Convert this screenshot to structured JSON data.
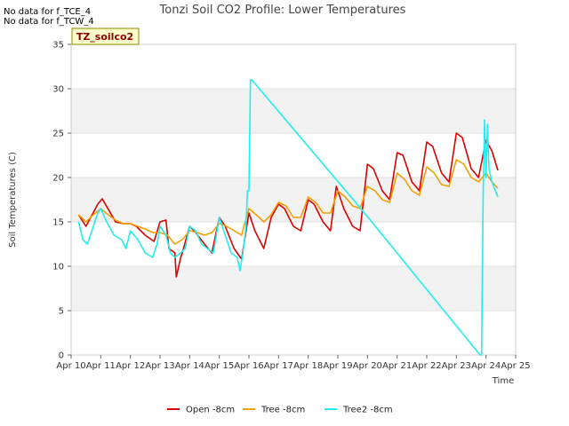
{
  "notes": [
    "No data for f_TCE_4",
    "No data for f_TCW_4"
  ],
  "badge": "TZ_soilco2",
  "chart_data": {
    "type": "line",
    "title": "Tonzi Soil CO2 Profile: Lower Temperatures",
    "xlabel": "Time",
    "ylabel": "Soil Temperatures (C)",
    "xlim": [
      10,
      25
    ],
    "ylim": [
      0,
      35
    ],
    "x_ticks": [
      10,
      11,
      12,
      13,
      14,
      15,
      16,
      17,
      18,
      19,
      20,
      21,
      22,
      23,
      24,
      25
    ],
    "x_tick_labels": [
      "Apr 10",
      "Apr 11",
      "Apr 12",
      "Apr 13",
      "Apr 14",
      "Apr 15",
      "Apr 16",
      "Apr 17",
      "Apr 18",
      "Apr 19",
      "Apr 20",
      "Apr 21",
      "Apr 22",
      "Apr 23",
      "Apr 24",
      "Apr 25"
    ],
    "y_ticks": [
      0,
      5,
      10,
      15,
      20,
      25,
      30,
      35
    ],
    "y_tick_labels": [
      "0",
      "5",
      "10",
      "15",
      "20",
      "25",
      "30",
      "35"
    ],
    "grid": "horizontal bands",
    "legend_position": "bottom",
    "series": [
      {
        "name": "Open -8cm",
        "color": "#dd0000",
        "x": [
          10.25,
          10.5,
          10.9,
          11.05,
          11.5,
          11.75,
          12.0,
          12.2,
          12.5,
          12.8,
          13.0,
          13.2,
          13.3,
          13.5,
          13.55,
          13.7,
          13.75,
          14.0,
          14.2,
          14.5,
          14.75,
          15.0,
          15.2,
          15.5,
          15.75,
          16.0,
          16.2,
          16.5,
          16.75,
          17.0,
          17.2,
          17.5,
          17.75,
          18.0,
          18.2,
          18.5,
          18.75,
          18.95,
          19.2,
          19.5,
          19.75,
          20.0,
          20.2,
          20.5,
          20.75,
          21.0,
          21.2,
          21.5,
          21.75,
          22.0,
          22.2,
          22.5,
          22.75,
          23.0,
          23.2,
          23.5,
          23.75,
          24.0,
          24.2,
          24.4
        ],
        "y": [
          15.8,
          14.5,
          17.0,
          17.6,
          15.0,
          14.8,
          14.8,
          14.5,
          13.5,
          12.8,
          15.0,
          15.2,
          12.0,
          11.5,
          8.8,
          11.0,
          11.5,
          14.5,
          13.8,
          12.5,
          11.5,
          15.5,
          14.5,
          12.0,
          10.8,
          16.0,
          14.0,
          12.0,
          15.5,
          17.0,
          16.5,
          14.5,
          14.0,
          17.5,
          17.0,
          15.0,
          14.0,
          19.0,
          16.5,
          14.5,
          14.0,
          21.5,
          21.0,
          18.5,
          17.5,
          22.8,
          22.5,
          19.5,
          18.5,
          24.0,
          23.5,
          20.5,
          19.5,
          25.0,
          24.5,
          21.0,
          20.0,
          24.2,
          23.0,
          20.8
        ]
      },
      {
        "name": "Tree -8cm",
        "color": "#f0a000",
        "x": [
          10.25,
          10.5,
          10.75,
          11.0,
          11.25,
          11.5,
          11.75,
          12.0,
          12.25,
          12.5,
          12.75,
          13.0,
          13.25,
          13.5,
          13.75,
          14.0,
          14.25,
          14.5,
          14.75,
          15.0,
          15.25,
          15.5,
          15.75,
          16.0,
          16.25,
          16.5,
          16.75,
          17.0,
          17.25,
          17.5,
          17.75,
          18.0,
          18.25,
          18.5,
          18.75,
          19.0,
          19.25,
          19.5,
          19.75,
          20.0,
          20.25,
          20.5,
          20.75,
          21.0,
          21.25,
          21.5,
          21.75,
          22.0,
          22.25,
          22.5,
          22.75,
          23.0,
          23.25,
          23.5,
          23.75,
          24.0,
          24.2,
          24.4
        ],
        "y": [
          15.8,
          15.0,
          15.8,
          16.5,
          15.8,
          15.2,
          14.8,
          14.8,
          14.5,
          14.2,
          13.8,
          13.8,
          13.5,
          12.5,
          13.0,
          14.0,
          13.8,
          13.5,
          13.8,
          14.8,
          14.5,
          14.0,
          13.5,
          16.5,
          15.8,
          15.0,
          15.8,
          17.2,
          16.8,
          15.5,
          15.5,
          17.8,
          17.2,
          16.0,
          16.0,
          18.5,
          17.8,
          16.8,
          16.5,
          19.0,
          18.5,
          17.5,
          17.2,
          20.5,
          19.8,
          18.5,
          18.0,
          21.2,
          20.5,
          19.2,
          19.0,
          22.0,
          21.5,
          20.0,
          19.5,
          20.5,
          19.5,
          18.8
        ]
      },
      {
        "name": "Tree2 -8cm",
        "color": "#22eeee",
        "x": [
          10.25,
          10.4,
          10.55,
          10.65,
          10.9,
          11.0,
          11.2,
          11.45,
          11.7,
          11.85,
          12.0,
          12.25,
          12.5,
          12.75,
          12.9,
          13.0,
          13.2,
          13.35,
          13.5,
          13.7,
          13.85,
          14.0,
          14.2,
          14.4,
          14.6,
          14.8,
          15.0,
          15.2,
          15.4,
          15.6,
          15.7,
          15.8,
          15.9,
          15.95,
          16.0,
          16.05,
          16.1,
          19.9,
          23.8,
          23.85,
          23.9,
          23.95,
          24.0,
          24.05,
          24.1,
          24.2,
          24.4
        ],
        "y": [
          15.0,
          13.0,
          12.5,
          13.5,
          16.0,
          16.5,
          15.0,
          13.5,
          13.0,
          12.0,
          14.0,
          13.0,
          11.5,
          11.0,
          12.5,
          14.5,
          13.5,
          11.5,
          11.0,
          11.5,
          12.0,
          14.5,
          14.0,
          12.5,
          12.0,
          11.5,
          15.5,
          13.5,
          11.5,
          11.0,
          9.5,
          11.5,
          14.5,
          18.5,
          18.5,
          31.0,
          31.0,
          16.0,
          0.0,
          0.0,
          17.0,
          26.5,
          20.0,
          26.0,
          21.0,
          19.5,
          17.8
        ]
      }
    ]
  }
}
